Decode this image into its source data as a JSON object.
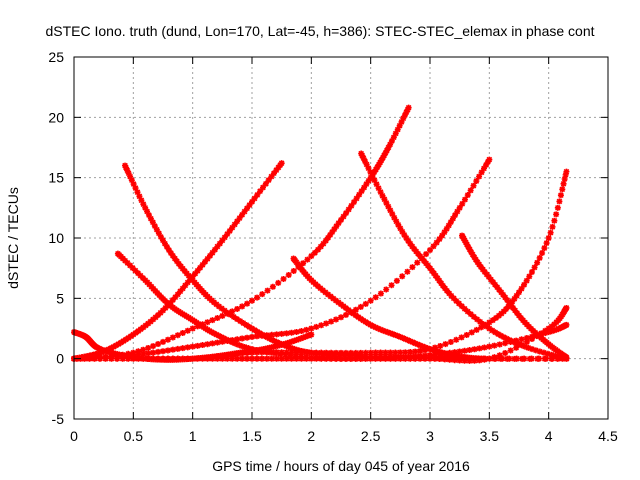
{
  "chart_data": {
    "type": "scatter",
    "title": "dSTEC Iono. truth (dund, Lon=170, Lat=-45, h=386): STEC-STEC_elemax in phase cont",
    "xlabel": "GPS time / hours of day 045 of year 2016",
    "ylabel": "dSTEC  / TECUs",
    "xlim": [
      0,
      4.5
    ],
    "ylim": [
      -5,
      25
    ],
    "xticks": [
      0,
      0.5,
      1,
      1.5,
      2,
      2.5,
      3,
      3.5,
      4,
      4.5
    ],
    "xtick_labels": [
      "0",
      "0.5",
      "1",
      "1.5",
      "2",
      "2.5",
      "3",
      "3.5",
      "4",
      "4.5"
    ],
    "yticks": [
      -5,
      0,
      5,
      10,
      15,
      20,
      25
    ],
    "ytick_labels": [
      "-5",
      "0",
      "5",
      "10",
      "15",
      "20",
      "25"
    ],
    "grid": true,
    "marker": "asterisk",
    "series_color": "#ff0000",
    "series": [
      {
        "x": [
          0.0,
          0.25,
          0.5,
          0.75,
          1.0,
          1.25,
          1.5,
          1.75
        ],
        "values": [
          0.0,
          0.6,
          2.0,
          4.0,
          6.8,
          9.8,
          13.0,
          16.2
        ]
      },
      {
        "x": [
          0.0,
          0.5,
          1.0,
          1.5,
          2.0,
          2.25,
          2.5,
          2.65,
          2.82
        ],
        "values": [
          0.0,
          0.5,
          2.5,
          4.8,
          8.5,
          11.5,
          15.0,
          17.5,
          20.8
        ]
      },
      {
        "x": [
          0.0,
          0.5,
          1.0,
          1.5,
          2.0,
          2.5,
          3.0,
          3.25,
          3.5
        ],
        "values": [
          0.0,
          0.3,
          1.0,
          1.8,
          2.5,
          4.8,
          9.0,
          12.5,
          16.5
        ]
      },
      {
        "x": [
          0.0,
          0.5,
          1.0,
          1.5,
          2.0,
          2.5,
          3.0,
          3.5,
          3.75,
          4.0,
          4.15
        ],
        "values": [
          0.0,
          0.0,
          0.0,
          0.5,
          0.5,
          0.5,
          0.8,
          3.0,
          5.5,
          10.0,
          15.5
        ]
      },
      {
        "x": [
          0.0,
          0.5,
          1.0,
          1.5,
          2.0,
          2.5,
          3.0,
          3.5,
          4.0,
          4.15
        ],
        "values": [
          0.0,
          0.0,
          0.0,
          0.0,
          0.0,
          0.0,
          0.0,
          0.0,
          2.5,
          4.2
        ]
      },
      {
        "x": [
          0.0,
          0.5,
          1.0,
          1.5,
          2.0,
          2.5,
          3.0,
          3.5,
          4.0,
          4.15
        ],
        "values": [
          0.0,
          0.0,
          0.0,
          0.0,
          0.0,
          0.0,
          0.3,
          1.0,
          2.2,
          2.8
        ]
      },
      {
        "x": [
          0.0,
          0.1,
          0.2,
          0.4,
          0.6,
          0.8,
          1.0,
          1.2,
          1.4,
          1.6,
          1.8,
          2.0
        ],
        "values": [
          2.2,
          1.8,
          0.9,
          0.3,
          0.0,
          -0.1,
          0.0,
          0.2,
          0.5,
          0.8,
          1.3,
          2.0
        ]
      },
      {
        "x": [
          0.37,
          0.6,
          0.8,
          1.0,
          1.2,
          1.5,
          2.0,
          2.5,
          3.0,
          3.5,
          4.15
        ],
        "values": [
          8.7,
          6.5,
          4.5,
          3.2,
          2.0,
          0.8,
          0.1,
          0.0,
          0.0,
          0.0,
          0.0
        ]
      },
      {
        "x": [
          0.43,
          0.6,
          0.8,
          1.0,
          1.2,
          1.5,
          1.75,
          2.0,
          2.5,
          3.0,
          3.5,
          4.15
        ],
        "values": [
          16.0,
          12.5,
          9.0,
          6.5,
          4.5,
          2.5,
          1.2,
          0.5,
          0.2,
          0.1,
          0.0,
          0.0
        ]
      },
      {
        "x": [
          1.85,
          2.0,
          2.25,
          2.5,
          2.75,
          3.0,
          3.25,
          3.5,
          4.15
        ],
        "values": [
          8.3,
          6.5,
          4.5,
          2.8,
          1.8,
          0.8,
          0.2,
          0.0,
          0.0
        ]
      },
      {
        "x": [
          2.42,
          2.6,
          2.8,
          3.0,
          3.2,
          3.5,
          3.8,
          4.15
        ],
        "values": [
          17.0,
          13.5,
          10.0,
          7.5,
          5.0,
          2.5,
          1.0,
          0.0
        ]
      },
      {
        "x": [
          3.27,
          3.4,
          3.6,
          3.8,
          4.0,
          4.15
        ],
        "values": [
          10.2,
          8.0,
          5.5,
          3.0,
          1.2,
          0.1
        ]
      }
    ]
  }
}
